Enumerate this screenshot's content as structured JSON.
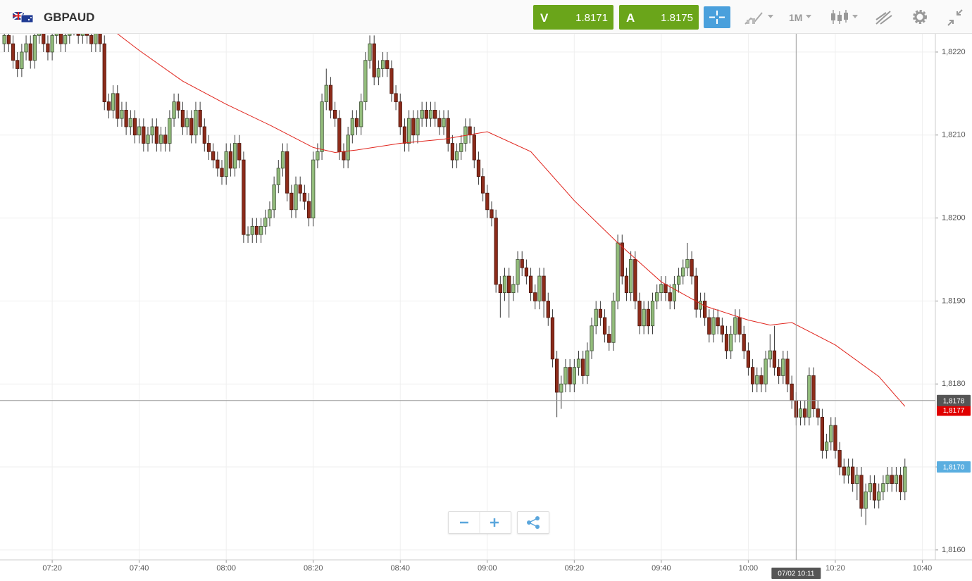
{
  "header": {
    "symbol": "GBPAUD",
    "sell": {
      "label": "V",
      "price": "1.8171"
    },
    "buy": {
      "label": "A",
      "price": "1.8175"
    },
    "timeframe": "1M"
  },
  "chart_data": {
    "type": "candlestick",
    "x": [
      "07:09",
      "07:10",
      "07:11",
      "07:12",
      "07:13",
      "07:14",
      "07:15",
      "07:16",
      "07:17",
      "07:18",
      "07:19",
      "07:20",
      "07:21",
      "07:22",
      "07:23",
      "07:24",
      "07:25",
      "07:26",
      "07:27",
      "07:28",
      "07:29",
      "07:30",
      "07:31",
      "07:32",
      "07:33",
      "07:34",
      "07:35",
      "07:36",
      "07:37",
      "07:38",
      "07:39",
      "07:40",
      "07:41",
      "07:42",
      "07:43",
      "07:44",
      "07:45",
      "07:46",
      "07:47",
      "07:48",
      "07:49",
      "07:50",
      "07:51",
      "07:52",
      "07:53",
      "07:54",
      "07:55",
      "07:56",
      "07:57",
      "07:58",
      "07:59",
      "08:00",
      "08:01",
      "08:02",
      "08:03",
      "08:04",
      "08:05",
      "08:06",
      "08:07",
      "08:08",
      "08:09",
      "08:10",
      "08:11",
      "08:12",
      "08:13",
      "08:14",
      "08:15",
      "08:16",
      "08:17",
      "08:18",
      "08:19",
      "08:20",
      "08:21",
      "08:22",
      "08:23",
      "08:24",
      "08:25",
      "08:26",
      "08:27",
      "08:28",
      "08:29",
      "08:30",
      "08:31",
      "08:32",
      "08:33",
      "08:34",
      "08:35",
      "08:36",
      "08:37",
      "08:38",
      "08:39",
      "08:40",
      "08:41",
      "08:42",
      "08:43",
      "08:44",
      "08:45",
      "08:46",
      "08:47",
      "08:48",
      "08:49",
      "08:50",
      "08:51",
      "08:52",
      "08:53",
      "08:54",
      "08:55",
      "08:56",
      "08:57",
      "08:58",
      "08:59",
      "09:00",
      "09:01",
      "09:02",
      "09:03",
      "09:04",
      "09:05",
      "09:06",
      "09:07",
      "09:08",
      "09:09",
      "09:10",
      "09:11",
      "09:12",
      "09:13",
      "09:14",
      "09:15",
      "09:16",
      "09:17",
      "09:18",
      "09:19",
      "09:20",
      "09:21",
      "09:22",
      "09:23",
      "09:24",
      "09:25",
      "09:26",
      "09:27",
      "09:28",
      "09:29",
      "09:30",
      "09:31",
      "09:32",
      "09:33",
      "09:34",
      "09:35",
      "09:36",
      "09:37",
      "09:38",
      "09:39",
      "09:40",
      "09:41",
      "09:42",
      "09:43",
      "09:44",
      "09:45",
      "09:46",
      "09:47",
      "09:48",
      "09:49",
      "09:50",
      "09:51",
      "09:52",
      "09:53",
      "09:54",
      "09:55",
      "09:56",
      "09:57",
      "09:58",
      "09:59",
      "10:00",
      "10:01",
      "10:02",
      "10:03",
      "10:04",
      "10:05",
      "10:06",
      "10:07",
      "10:08",
      "10:09",
      "10:10",
      "10:11",
      "10:12",
      "10:13",
      "10:14",
      "10:15",
      "10:16",
      "10:17",
      "10:18",
      "10:19",
      "10:20",
      "10:21",
      "10:22",
      "10:23",
      "10:24",
      "10:25",
      "10:26",
      "10:27",
      "10:28",
      "10:29",
      "10:30",
      "10:31",
      "10:32",
      "10:33",
      "10:34",
      "10:35",
      "10:36"
    ],
    "open": [
      1.8221,
      1.8222,
      1.8221,
      1.8219,
      1.8218,
      1.822,
      1.8221,
      1.8219,
      1.8222,
      1.8223,
      1.8221,
      1.822,
      1.8222,
      1.8223,
      1.8221,
      1.8222,
      1.8224,
      1.8223,
      1.8222,
      1.8223,
      1.8222,
      1.8221,
      1.8223,
      1.8221,
      1.8214,
      1.8213,
      1.8215,
      1.8212,
      1.8213,
      1.8211,
      1.8212,
      1.821,
      1.8211,
      1.8209,
      1.821,
      1.8211,
      1.8209,
      1.821,
      1.8209,
      1.8212,
      1.8214,
      1.8213,
      1.8211,
      1.8212,
      1.821,
      1.8213,
      1.8211,
      1.8209,
      1.8208,
      1.8207,
      1.8206,
      1.8205,
      1.8208,
      1.8206,
      1.8209,
      1.8207,
      1.8198,
      1.8198,
      1.8199,
      1.8198,
      1.8199,
      1.82,
      1.8201,
      1.8204,
      1.8206,
      1.8208,
      1.8203,
      1.8201,
      1.8204,
      1.8203,
      1.8202,
      1.82,
      1.8207,
      1.8208,
      1.8214,
      1.8216,
      1.8213,
      1.8212,
      1.8208,
      1.8207,
      1.821,
      1.8212,
      1.8211,
      1.8214,
      1.8219,
      1.8221,
      1.8217,
      1.8218,
      1.8219,
      1.8218,
      1.8215,
      1.8214,
      1.8211,
      1.8209,
      1.8212,
      1.821,
      1.8212,
      1.8213,
      1.8212,
      1.8213,
      1.8212,
      1.8211,
      1.8212,
      1.8209,
      1.8207,
      1.8208,
      1.8209,
      1.8211,
      1.821,
      1.8207,
      1.8205,
      1.8203,
      1.8201,
      1.82,
      1.8192,
      1.8191,
      1.8193,
      1.8191,
      1.8192,
      1.8195,
      1.8194,
      1.8193,
      1.8191,
      1.819,
      1.8193,
      1.819,
      1.8188,
      1.8183,
      1.8179,
      1.818,
      1.8182,
      1.818,
      1.8182,
      1.8183,
      1.8181,
      1.8184,
      1.8187,
      1.8189,
      1.8188,
      1.8186,
      1.8185,
      1.819,
      1.8197,
      1.8193,
      1.8191,
      1.8195,
      1.819,
      1.8187,
      1.8189,
      1.8187,
      1.819,
      1.8191,
      1.8192,
      1.8191,
      1.819,
      1.8192,
      1.8193,
      1.8194,
      1.8195,
      1.8193,
      1.8189,
      1.819,
      1.8188,
      1.8186,
      1.8188,
      1.8187,
      1.8186,
      1.8184,
      1.8186,
      1.8188,
      1.8186,
      1.8184,
      1.8182,
      1.818,
      1.8181,
      1.818,
      1.8183,
      1.8184,
      1.8182,
      1.8181,
      1.8183,
      1.818,
      1.8178,
      1.8176,
      1.8177,
      1.8176,
      1.8181,
      1.8177,
      1.8176,
      1.8172,
      1.8173,
      1.8175,
      1.8172,
      1.817,
      1.8169,
      1.817,
      1.8168,
      1.8169,
      1.8165,
      1.8167,
      1.8168,
      1.8166,
      1.8167,
      1.8168,
      1.8169,
      1.8168,
      1.8169,
      1.8167
    ],
    "high": [
      1.8223,
      1.8223,
      1.8222,
      1.822,
      1.8221,
      1.8222,
      1.8222,
      1.8223,
      1.8224,
      1.8224,
      1.8222,
      1.8223,
      1.8224,
      1.8224,
      1.8223,
      1.8225,
      1.8225,
      1.8224,
      1.8224,
      1.8224,
      1.8223,
      1.8224,
      1.8224,
      1.8222,
      1.8215,
      1.8216,
      1.8216,
      1.8214,
      1.8214,
      1.8213,
      1.8213,
      1.8212,
      1.8212,
      1.8211,
      1.8212,
      1.8212,
      1.8211,
      1.8211,
      1.8213,
      1.8215,
      1.8215,
      1.8214,
      1.8213,
      1.8213,
      1.8214,
      1.8214,
      1.8212,
      1.821,
      1.8209,
      1.8208,
      1.8207,
      1.8209,
      1.8209,
      1.821,
      1.821,
      1.8208,
      1.8199,
      1.82,
      1.82,
      1.82,
      1.8201,
      1.8202,
      1.8205,
      1.8207,
      1.8209,
      1.8209,
      1.8204,
      1.8205,
      1.8205,
      1.8204,
      1.8203,
      1.8208,
      1.8209,
      1.8215,
      1.8218,
      1.8217,
      1.8214,
      1.8213,
      1.8209,
      1.8211,
      1.8213,
      1.8213,
      1.8215,
      1.822,
      1.8222,
      1.8222,
      1.8219,
      1.822,
      1.822,
      1.8219,
      1.8216,
      1.8215,
      1.8212,
      1.8213,
      1.8213,
      1.8213,
      1.8214,
      1.8214,
      1.8214,
      1.8214,
      1.8213,
      1.8213,
      1.8213,
      1.821,
      1.8209,
      1.821,
      1.8212,
      1.8212,
      1.8211,
      1.8208,
      1.8206,
      1.8204,
      1.8202,
      1.8201,
      1.8193,
      1.8194,
      1.8194,
      1.8193,
      1.8196,
      1.8196,
      1.8195,
      1.8194,
      1.8192,
      1.8194,
      1.8194,
      1.8191,
      1.8189,
      1.8184,
      1.8181,
      1.8183,
      1.8183,
      1.8183,
      1.8184,
      1.8184,
      1.8185,
      1.8188,
      1.819,
      1.819,
      1.8189,
      1.8187,
      1.8191,
      1.8198,
      1.8198,
      1.8194,
      1.8196,
      1.8196,
      1.8191,
      1.819,
      1.819,
      1.8191,
      1.8192,
      1.8193,
      1.8193,
      1.8192,
      1.8193,
      1.8194,
      1.8195,
      1.8197,
      1.8196,
      1.8194,
      1.8191,
      1.8191,
      1.8189,
      1.8189,
      1.8189,
      1.8188,
      1.8187,
      1.8187,
      1.8189,
      1.8189,
      1.8187,
      1.8185,
      1.8183,
      1.8182,
      1.8182,
      1.8184,
      1.8186,
      1.8187,
      1.8183,
      1.8184,
      1.8184,
      1.8181,
      1.8179,
      1.8178,
      1.8178,
      1.8182,
      1.8182,
      1.8178,
      1.8177,
      1.8174,
      1.8176,
      1.8176,
      1.8173,
      1.8171,
      1.8171,
      1.8171,
      1.817,
      1.817,
      1.8168,
      1.8169,
      1.8169,
      1.8168,
      1.8169,
      1.817,
      1.817,
      1.817,
      1.817,
      1.8171
    ],
    "low": [
      1.822,
      1.822,
      1.8218,
      1.8217,
      1.8217,
      1.8219,
      1.8218,
      1.8218,
      1.8221,
      1.822,
      1.8219,
      1.8219,
      1.8221,
      1.822,
      1.822,
      1.8221,
      1.8222,
      1.8221,
      1.8221,
      1.8221,
      1.822,
      1.822,
      1.822,
      1.8213,
      1.8212,
      1.8212,
      1.8211,
      1.8211,
      1.821,
      1.821,
      1.8209,
      1.8209,
      1.8208,
      1.8208,
      1.8209,
      1.8208,
      1.8208,
      1.8208,
      1.8208,
      1.8211,
      1.8212,
      1.821,
      1.821,
      1.8209,
      1.8209,
      1.821,
      1.8208,
      1.8207,
      1.8206,
      1.8205,
      1.8204,
      1.8204,
      1.8205,
      1.8205,
      1.8206,
      1.8197,
      1.8197,
      1.8197,
      1.8197,
      1.8197,
      1.8198,
      1.8199,
      1.82,
      1.8203,
      1.8205,
      1.8202,
      1.82,
      1.82,
      1.8202,
      1.8201,
      1.8199,
      1.8199,
      1.8206,
      1.8207,
      1.8213,
      1.8212,
      1.8211,
      1.8207,
      1.8206,
      1.8206,
      1.8209,
      1.821,
      1.821,
      1.8213,
      1.8218,
      1.8216,
      1.8216,
      1.8217,
      1.8217,
      1.8214,
      1.8213,
      1.821,
      1.8208,
      1.8208,
      1.8209,
      1.8209,
      1.8211,
      1.8211,
      1.8211,
      1.8211,
      1.821,
      1.821,
      1.8208,
      1.8206,
      1.8206,
      1.8207,
      1.8208,
      1.8209,
      1.8206,
      1.8204,
      1.8202,
      1.82,
      1.8199,
      1.8191,
      1.8188,
      1.819,
      1.8188,
      1.819,
      1.8191,
      1.8193,
      1.8192,
      1.819,
      1.8189,
      1.8189,
      1.8188,
      1.8187,
      1.8182,
      1.8176,
      1.8177,
      1.8179,
      1.8179,
      1.8179,
      1.8181,
      1.818,
      1.818,
      1.8183,
      1.8186,
      1.8187,
      1.8185,
      1.8184,
      1.8184,
      1.8189,
      1.8192,
      1.819,
      1.819,
      1.8189,
      1.8186,
      1.8186,
      1.8186,
      1.8186,
      1.8189,
      1.819,
      1.819,
      1.8189,
      1.8189,
      1.8191,
      1.8192,
      1.8193,
      1.8192,
      1.8188,
      1.8188,
      1.8187,
      1.8185,
      1.8185,
      1.8186,
      1.8185,
      1.8183,
      1.8183,
      1.8185,
      1.8185,
      1.8183,
      1.8181,
      1.8179,
      1.8179,
      1.8179,
      1.8179,
      1.8182,
      1.8181,
      1.818,
      1.818,
      1.8179,
      1.8177,
      1.8175,
      1.8175,
      1.8175,
      1.8175,
      1.8176,
      1.8175,
      1.8171,
      1.8171,
      1.8172,
      1.8171,
      1.8169,
      1.8168,
      1.8168,
      1.8167,
      1.8166,
      1.8164,
      1.8163,
      1.8166,
      1.8165,
      1.8165,
      1.8166,
      1.8167,
      1.8167,
      1.8167,
      1.8166,
      1.8166
    ],
    "close": [
      1.8222,
      1.8221,
      1.8219,
      1.8218,
      1.822,
      1.8221,
      1.8219,
      1.8222,
      1.8223,
      1.8221,
      1.822,
      1.8222,
      1.8223,
      1.8221,
      1.8222,
      1.8224,
      1.8223,
      1.8222,
      1.8223,
      1.8222,
      1.8221,
      1.8223,
      1.8221,
      1.8214,
      1.8213,
      1.8215,
      1.8212,
      1.8213,
      1.8211,
      1.8212,
      1.821,
      1.8211,
      1.8209,
      1.821,
      1.8211,
      1.8209,
      1.821,
      1.8209,
      1.8212,
      1.8214,
      1.8213,
      1.8211,
      1.8212,
      1.821,
      1.8213,
      1.8211,
      1.8209,
      1.8208,
      1.8207,
      1.8206,
      1.8205,
      1.8208,
      1.8206,
      1.8209,
      1.8207,
      1.8198,
      1.8198,
      1.8199,
      1.8198,
      1.8199,
      1.82,
      1.8201,
      1.8204,
      1.8206,
      1.8208,
      1.8203,
      1.8201,
      1.8204,
      1.8203,
      1.8202,
      1.82,
      1.8207,
      1.8208,
      1.8214,
      1.8216,
      1.8213,
      1.8212,
      1.8208,
      1.8207,
      1.821,
      1.8212,
      1.8211,
      1.8214,
      1.8219,
      1.8221,
      1.8217,
      1.8218,
      1.8219,
      1.8218,
      1.8215,
      1.8214,
      1.8211,
      1.8209,
      1.8212,
      1.821,
      1.8212,
      1.8213,
      1.8212,
      1.8213,
      1.8212,
      1.8211,
      1.8212,
      1.8209,
      1.8207,
      1.8208,
      1.8209,
      1.8211,
      1.821,
      1.8207,
      1.8205,
      1.8203,
      1.8201,
      1.82,
      1.8192,
      1.8191,
      1.8193,
      1.8191,
      1.8192,
      1.8195,
      1.8194,
      1.8193,
      1.8191,
      1.819,
      1.8193,
      1.819,
      1.8188,
      1.8183,
      1.8179,
      1.818,
      1.8182,
      1.818,
      1.8182,
      1.8183,
      1.8181,
      1.8184,
      1.8187,
      1.8189,
      1.8188,
      1.8186,
      1.8185,
      1.819,
      1.8197,
      1.8193,
      1.8191,
      1.8195,
      1.819,
      1.8187,
      1.8189,
      1.8187,
      1.819,
      1.8191,
      1.8192,
      1.8191,
      1.819,
      1.8192,
      1.8193,
      1.8194,
      1.8195,
      1.8193,
      1.8189,
      1.819,
      1.8188,
      1.8186,
      1.8188,
      1.8187,
      1.8186,
      1.8184,
      1.8186,
      1.8188,
      1.8186,
      1.8184,
      1.8182,
      1.818,
      1.8181,
      1.818,
      1.8183,
      1.8184,
      1.8182,
      1.8181,
      1.8183,
      1.818,
      1.8178,
      1.8176,
      1.8177,
      1.8176,
      1.8181,
      1.8177,
      1.8176,
      1.8172,
      1.8173,
      1.8175,
      1.8172,
      1.817,
      1.8169,
      1.817,
      1.8168,
      1.8169,
      1.8165,
      1.8167,
      1.8168,
      1.8166,
      1.8167,
      1.8168,
      1.8169,
      1.8168,
      1.8169,
      1.8167,
      1.817
    ],
    "up_color": "#93bd7c",
    "down_color": "#8c2b1a",
    "overlays": [
      {
        "type": "line",
        "color": "#e0231b",
        "x": [
          "07:35",
          "07:40",
          "07:50",
          "08:00",
          "08:10",
          "08:20",
          "08:25",
          "08:30",
          "08:40",
          "08:50",
          "09:00",
          "09:10",
          "09:20",
          "09:30",
          "09:40",
          "09:50",
          "10:00",
          "10:05",
          "10:10",
          "10:20",
          "10:30",
          "10:36"
        ],
        "values": [
          1.82222,
          1.82202,
          1.82165,
          1.82137,
          1.82112,
          1.82085,
          1.82079,
          1.82082,
          1.8209,
          1.82095,
          1.82104,
          1.8208,
          1.82021,
          1.8197,
          1.81923,
          1.81894,
          1.81877,
          1.81871,
          1.81874,
          1.81847,
          1.81809,
          1.81773
        ]
      }
    ],
    "xlim": [
      "07:08",
      "10:43"
    ],
    "xticks": [
      "07:20",
      "07:40",
      "08:00",
      "08:20",
      "08:40",
      "09:00",
      "09:20",
      "09:40",
      "10:00",
      "10:20",
      "10:40"
    ],
    "ylim": [
      1.81588,
      1.82222
    ],
    "yticks": [
      {
        "value": 1.816,
        "label": "1,8160"
      },
      {
        "value": 1.817,
        "label": "1,8170"
      },
      {
        "value": 1.818,
        "label": "1,8180"
      },
      {
        "value": 1.819,
        "label": "1,8190"
      },
      {
        "value": 1.82,
        "label": "1,8200"
      },
      {
        "value": 1.821,
        "label": "1,8210"
      },
      {
        "value": 1.822,
        "label": "1,8220"
      }
    ],
    "grid": true,
    "crosshair": {
      "price": {
        "value": 1.8178,
        "label": "1,8178"
      },
      "time": "07/02 10:11"
    },
    "ma_price": {
      "value": 1.8177,
      "label": "1,8177"
    },
    "last_price": {
      "value": 1.817,
      "label": "1,8170"
    }
  }
}
